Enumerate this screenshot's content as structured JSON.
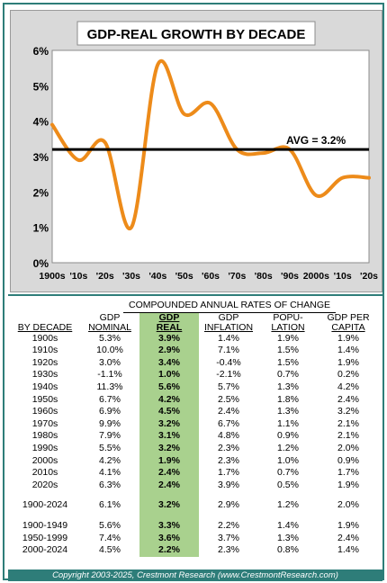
{
  "chart_data": {
    "type": "line",
    "title": "GDP-REAL GROWTH BY DECADE",
    "x_tick_labels": [
      "1900s",
      "'10s",
      "'20s",
      "'30s",
      "'40s",
      "'50s",
      "'60s",
      "'70s",
      "'80s",
      "'90s",
      "2000s",
      "'10s",
      "'20s"
    ],
    "series": [
      {
        "values": [
          3.9,
          2.9,
          3.4,
          1.0,
          5.6,
          4.2,
          4.5,
          3.2,
          3.1,
          3.2,
          1.9,
          2.4,
          2.4
        ],
        "color": "#ed8b1a"
      }
    ],
    "y_ticks": [
      "0%",
      "1%",
      "2%",
      "3%",
      "4%",
      "5%",
      "6%"
    ],
    "ylim": [
      0,
      6
    ],
    "average": {
      "value": 3.2,
      "label": "AVG = 3.2%",
      "color": "#000000"
    },
    "grid": false
  },
  "table": {
    "caption": "COMPOUNDED ANNUAL RATES OF CHANGE",
    "headers": {
      "by_decade": "BY DECADE",
      "gdp_nominal_1": "GDP",
      "gdp_nominal_2": "NOMINAL",
      "gdp_real_1": "GDP",
      "gdp_real_2": "REAL",
      "gdp_inflation_1": "GDP",
      "gdp_inflation_2": "INFLATION",
      "population_1": "POPU-",
      "population_2": "LATION",
      "gdp_per_capita_1": "GDP PER",
      "gdp_per_capita_2": "CAPITA"
    },
    "rows": [
      [
        "1900s",
        "5.3%",
        "3.9%",
        "1.4%",
        "1.9%",
        "1.9%"
      ],
      [
        "1910s",
        "10.0%",
        "2.9%",
        "7.1%",
        "1.5%",
        "1.4%"
      ],
      [
        "1920s",
        "3.0%",
        "3.4%",
        "-0.4%",
        "1.5%",
        "1.9%"
      ],
      [
        "1930s",
        "-1.1%",
        "1.0%",
        "-2.1%",
        "0.7%",
        "0.2%"
      ],
      [
        "1940s",
        "11.3%",
        "5.6%",
        "5.7%",
        "1.3%",
        "4.2%"
      ],
      [
        "1950s",
        "6.7%",
        "4.2%",
        "2.5%",
        "1.8%",
        "2.4%"
      ],
      [
        "1960s",
        "6.9%",
        "4.5%",
        "2.4%",
        "1.3%",
        "3.2%"
      ],
      [
        "1970s",
        "9.9%",
        "3.2%",
        "6.7%",
        "1.1%",
        "2.1%"
      ],
      [
        "1980s",
        "7.9%",
        "3.1%",
        "4.8%",
        "0.9%",
        "2.1%"
      ],
      [
        "1990s",
        "5.5%",
        "3.2%",
        "2.3%",
        "1.2%",
        "2.0%"
      ],
      [
        "2000s",
        "4.2%",
        "1.9%",
        "2.3%",
        "1.0%",
        "0.9%"
      ],
      [
        "2010s",
        "4.1%",
        "2.4%",
        "1.7%",
        "0.7%",
        "1.7%"
      ],
      [
        "2020s",
        "6.3%",
        "2.4%",
        "3.9%",
        "0.5%",
        "1.9%"
      ]
    ],
    "full_period": [
      "1900-2024",
      "6.1%",
      "3.2%",
      "2.9%",
      "1.2%",
      "2.0%"
    ],
    "half_centuries": [
      [
        "1900-1949",
        "5.6%",
        "3.3%",
        "2.2%",
        "1.4%",
        "1.9%"
      ],
      [
        "1950-1999",
        "7.4%",
        "3.6%",
        "3.7%",
        "1.3%",
        "2.4%"
      ],
      [
        "2000-2024",
        "4.5%",
        "2.2%",
        "2.3%",
        "0.8%",
        "1.4%"
      ]
    ]
  },
  "footer": {
    "copyright": "Copyright 2003-2025, Crestmont Research (www.CrestmontResearch.com)"
  },
  "colors": {
    "frame": "#2e7d79",
    "gdp_real_column": "#a9d18e",
    "line": "#ed8b1a"
  }
}
